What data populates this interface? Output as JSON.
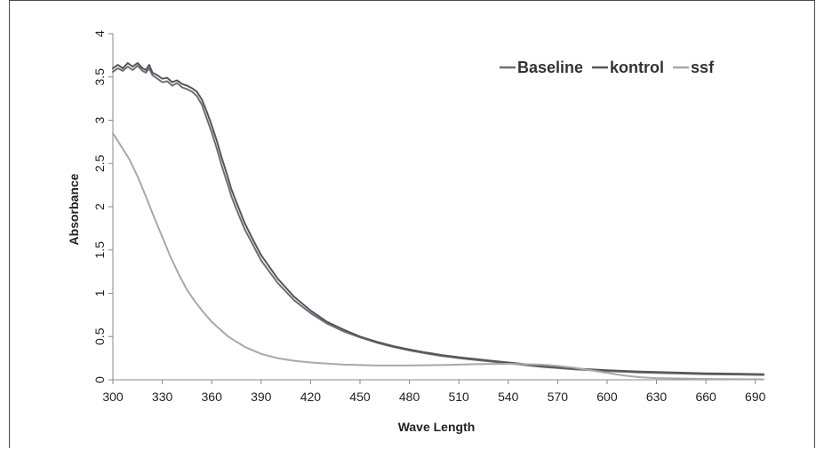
{
  "chart_data": {
    "type": "line",
    "title": "",
    "xlabel": "Wave Length",
    "ylabel": "Absorbance",
    "xlim": [
      300,
      695
    ],
    "ylim": [
      0,
      4
    ],
    "x_ticks": [
      "300",
      "330",
      "360",
      "390",
      "420",
      "450",
      "480",
      "510",
      "540",
      "570",
      "600",
      "630",
      "660",
      "690"
    ],
    "y_ticks": [
      "0",
      "0.5",
      "1",
      "1.5",
      "2",
      "2.5",
      "3",
      "3.5",
      "4"
    ],
    "grid": false,
    "legend_position": "top-right",
    "series": [
      {
        "name": "Baseline",
        "color": "#6e6e76",
        "points": [
          [
            300,
            3.56
          ],
          [
            303,
            3.6
          ],
          [
            306,
            3.57
          ],
          [
            309,
            3.62
          ],
          [
            312,
            3.58
          ],
          [
            315,
            3.63
          ],
          [
            318,
            3.57
          ],
          [
            320,
            3.55
          ],
          [
            322,
            3.6
          ],
          [
            324,
            3.52
          ],
          [
            327,
            3.48
          ],
          [
            330,
            3.44
          ],
          [
            333,
            3.45
          ],
          [
            336,
            3.4
          ],
          [
            339,
            3.43
          ],
          [
            342,
            3.38
          ],
          [
            345,
            3.36
          ],
          [
            348,
            3.33
          ],
          [
            351,
            3.28
          ],
          [
            354,
            3.18
          ],
          [
            357,
            3.02
          ],
          [
            360,
            2.86
          ],
          [
            363,
            2.68
          ],
          [
            366,
            2.48
          ],
          [
            369,
            2.3
          ],
          [
            372,
            2.12
          ],
          [
            375,
            1.97
          ],
          [
            380,
            1.74
          ],
          [
            385,
            1.56
          ],
          [
            390,
            1.38
          ],
          [
            400,
            1.12
          ],
          [
            410,
            0.92
          ],
          [
            420,
            0.77
          ],
          [
            430,
            0.65
          ],
          [
            440,
            0.56
          ],
          [
            450,
            0.49
          ],
          [
            460,
            0.43
          ],
          [
            470,
            0.38
          ],
          [
            480,
            0.34
          ],
          [
            490,
            0.305
          ],
          [
            500,
            0.275
          ],
          [
            510,
            0.25
          ],
          [
            520,
            0.23
          ],
          [
            530,
            0.21
          ],
          [
            540,
            0.19
          ],
          [
            550,
            0.17
          ],
          [
            560,
            0.15
          ],
          [
            570,
            0.135
          ],
          [
            580,
            0.12
          ],
          [
            600,
            0.1
          ],
          [
            620,
            0.085
          ],
          [
            640,
            0.075
          ],
          [
            660,
            0.065
          ],
          [
            680,
            0.06
          ],
          [
            695,
            0.055
          ]
        ]
      },
      {
        "name": "kontrol",
        "color": "#55555e",
        "points": [
          [
            300,
            3.6
          ],
          [
            303,
            3.64
          ],
          [
            306,
            3.6
          ],
          [
            309,
            3.66
          ],
          [
            312,
            3.62
          ],
          [
            315,
            3.66
          ],
          [
            318,
            3.6
          ],
          [
            320,
            3.58
          ],
          [
            322,
            3.64
          ],
          [
            324,
            3.55
          ],
          [
            327,
            3.52
          ],
          [
            330,
            3.48
          ],
          [
            333,
            3.49
          ],
          [
            336,
            3.44
          ],
          [
            339,
            3.46
          ],
          [
            342,
            3.42
          ],
          [
            345,
            3.4
          ],
          [
            348,
            3.37
          ],
          [
            351,
            3.33
          ],
          [
            354,
            3.24
          ],
          [
            357,
            3.1
          ],
          [
            360,
            2.94
          ],
          [
            363,
            2.77
          ],
          [
            366,
            2.57
          ],
          [
            369,
            2.39
          ],
          [
            372,
            2.2
          ],
          [
            375,
            2.05
          ],
          [
            380,
            1.81
          ],
          [
            385,
            1.62
          ],
          [
            390,
            1.44
          ],
          [
            400,
            1.17
          ],
          [
            410,
            0.96
          ],
          [
            420,
            0.8
          ],
          [
            430,
            0.67
          ],
          [
            440,
            0.58
          ],
          [
            450,
            0.5
          ],
          [
            460,
            0.44
          ],
          [
            470,
            0.39
          ],
          [
            480,
            0.35
          ],
          [
            490,
            0.315
          ],
          [
            500,
            0.285
          ],
          [
            510,
            0.26
          ],
          [
            520,
            0.24
          ],
          [
            530,
            0.22
          ],
          [
            540,
            0.2
          ],
          [
            550,
            0.18
          ],
          [
            560,
            0.16
          ],
          [
            570,
            0.145
          ],
          [
            580,
            0.13
          ],
          [
            600,
            0.11
          ],
          [
            620,
            0.095
          ],
          [
            640,
            0.085
          ],
          [
            660,
            0.075
          ],
          [
            680,
            0.07
          ],
          [
            695,
            0.065
          ]
        ]
      },
      {
        "name": "ssf",
        "color": "#a8a8ac",
        "points": [
          [
            300,
            2.85
          ],
          [
            305,
            2.7
          ],
          [
            310,
            2.55
          ],
          [
            315,
            2.35
          ],
          [
            320,
            2.12
          ],
          [
            325,
            1.88
          ],
          [
            330,
            1.65
          ],
          [
            335,
            1.42
          ],
          [
            340,
            1.22
          ],
          [
            345,
            1.04
          ],
          [
            350,
            0.9
          ],
          [
            355,
            0.78
          ],
          [
            360,
            0.67
          ],
          [
            370,
            0.5
          ],
          [
            380,
            0.38
          ],
          [
            390,
            0.3
          ],
          [
            400,
            0.25
          ],
          [
            410,
            0.22
          ],
          [
            420,
            0.2
          ],
          [
            440,
            0.175
          ],
          [
            460,
            0.165
          ],
          [
            480,
            0.165
          ],
          [
            500,
            0.17
          ],
          [
            520,
            0.18
          ],
          [
            540,
            0.185
          ],
          [
            560,
            0.175
          ],
          [
            570,
            0.16
          ],
          [
            580,
            0.14
          ],
          [
            590,
            0.11
          ],
          [
            600,
            0.08
          ],
          [
            610,
            0.05
          ],
          [
            620,
            0.03
          ],
          [
            630,
            0.02
          ],
          [
            650,
            0.012
          ],
          [
            670,
            0.008
          ],
          [
            695,
            0.005
          ]
        ]
      }
    ]
  }
}
